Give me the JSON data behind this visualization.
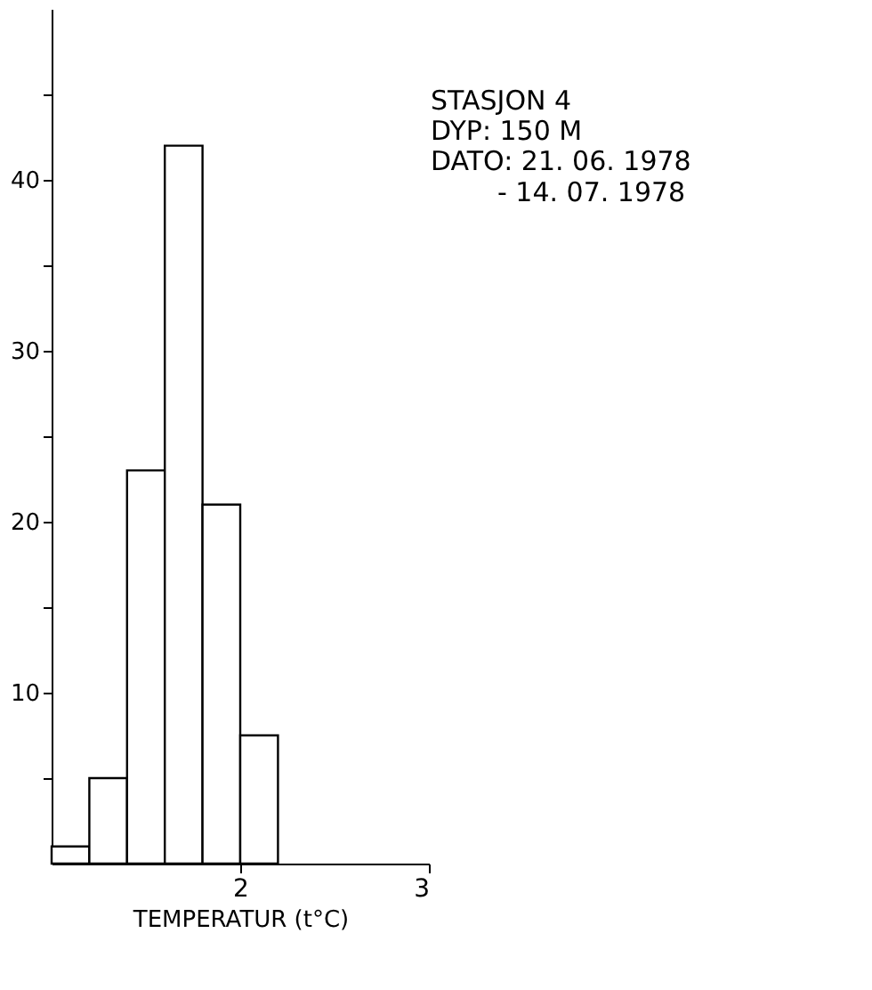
{
  "chart_data": {
    "type": "histogram",
    "xlabel": "TEMPERATUR (t°C)",
    "bins": [
      1.0,
      1.2,
      1.4,
      1.6,
      1.8,
      2.0,
      2.2
    ],
    "values": [
      1,
      5,
      23,
      42,
      21,
      7.5
    ],
    "color": "#ffffff",
    "xlim": [
      1,
      3
    ],
    "xticks": [
      2,
      3
    ],
    "ylim": [
      0,
      50
    ],
    "yticks": [
      {
        "value": 5,
        "label": null
      },
      10,
      {
        "value": 15,
        "label": null
      },
      20,
      {
        "value": 25,
        "label": null
      },
      30,
      {
        "value": 35,
        "label": null
      },
      40,
      {
        "value": 45,
        "label": null
      }
    ],
    "grid": false,
    "annotations": [
      "STASJON 4",
      "DYP: 150 M",
      "DATO: 21. 06. 1978",
      "- 14. 07. 1978"
    ]
  }
}
